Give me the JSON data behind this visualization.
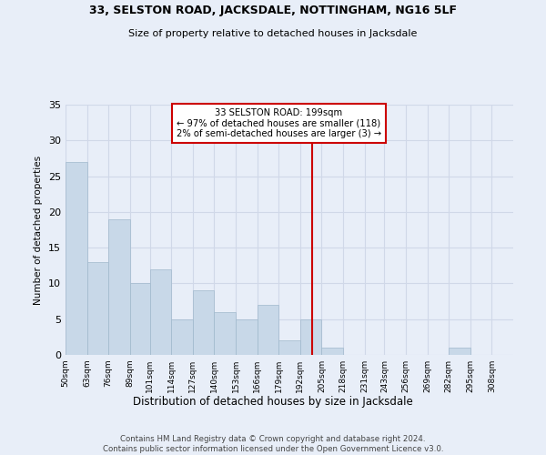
{
  "title": "33, SELSTON ROAD, JACKSDALE, NOTTINGHAM, NG16 5LF",
  "subtitle": "Size of property relative to detached houses in Jacksdale",
  "xlabel": "Distribution of detached houses by size in Jacksdale",
  "ylabel": "Number of detached properties",
  "bin_labels": [
    "50sqm",
    "63sqm",
    "76sqm",
    "89sqm",
    "101sqm",
    "114sqm",
    "127sqm",
    "140sqm",
    "153sqm",
    "166sqm",
    "179sqm",
    "192sqm",
    "205sqm",
    "218sqm",
    "231sqm",
    "243sqm",
    "256sqm",
    "269sqm",
    "282sqm",
    "295sqm",
    "308sqm"
  ],
  "bin_edges": [
    50,
    63,
    76,
    89,
    101,
    114,
    127,
    140,
    153,
    166,
    179,
    192,
    205,
    218,
    231,
    243,
    256,
    269,
    282,
    295,
    308
  ],
  "counts": [
    27,
    13,
    19,
    10,
    12,
    5,
    9,
    6,
    5,
    7,
    2,
    5,
    1,
    0,
    0,
    0,
    0,
    0,
    1,
    0,
    0
  ],
  "bar_color": "#c8d8e8",
  "bar_edgecolor": "#a0b8cc",
  "property_size": 199,
  "vline_x": 199,
  "vline_color": "#cc0000",
  "annotation_text": "33 SELSTON ROAD: 199sqm\n← 97% of detached houses are smaller (118)\n2% of semi-detached houses are larger (3) →",
  "annotation_box_color": "#cc0000",
  "ylim": [
    0,
    35
  ],
  "yticks": [
    0,
    5,
    10,
    15,
    20,
    25,
    30,
    35
  ],
  "grid_color": "#d0d8e8",
  "background_color": "#e8eef8",
  "footer": "Contains HM Land Registry data © Crown copyright and database right 2024.\nContains public sector information licensed under the Open Government Licence v3.0."
}
